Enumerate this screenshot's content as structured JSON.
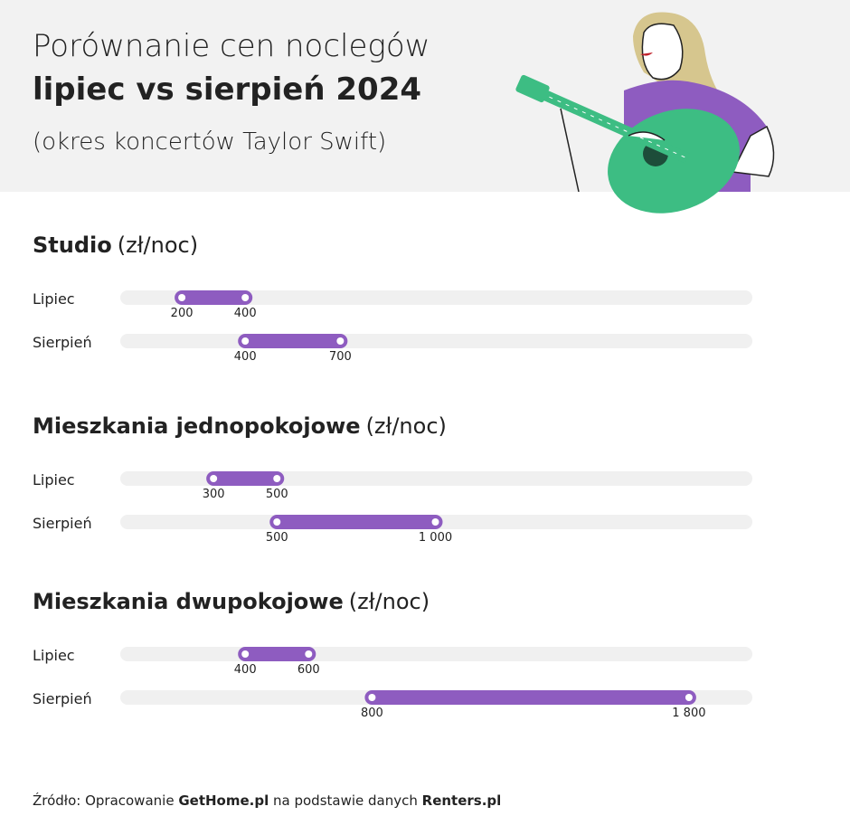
{
  "header": {
    "title_line1": "Porównanie cen noclegów",
    "title_line2": "lipiec vs sierpień 2024",
    "subtitle": "(okres koncertów Taylor Swift)"
  },
  "chart_data": [
    {
      "type": "range",
      "title": "Studio",
      "unit": "(zł/noc)",
      "categories": [
        "Lipiec",
        "Sierpień"
      ],
      "values": [
        [
          200,
          400
        ],
        [
          400,
          700
        ]
      ],
      "value_labels": [
        [
          "200",
          "400"
        ],
        [
          "400",
          "700"
        ]
      ],
      "xlim": [
        0,
        2000
      ],
      "color": "#8e5cc0"
    },
    {
      "type": "range",
      "title": "Mieszkania jednopokojowe",
      "unit": "(zł/noc)",
      "categories": [
        "Lipiec",
        "Sierpień"
      ],
      "values": [
        [
          300,
          500
        ],
        [
          500,
          1000
        ]
      ],
      "value_labels": [
        [
          "300",
          "500"
        ],
        [
          "500",
          "1 000"
        ]
      ],
      "xlim": [
        0,
        2000
      ],
      "color": "#8e5cc0"
    },
    {
      "type": "range",
      "title": "Mieszkania dwupokojowe",
      "unit": "(zł/noc)",
      "categories": [
        "Lipiec",
        "Sierpień"
      ],
      "values": [
        [
          400,
          600
        ],
        [
          800,
          1800
        ]
      ],
      "value_labels": [
        [
          "400",
          "600"
        ],
        [
          "800",
          "1 800"
        ]
      ],
      "xlim": [
        0,
        2000
      ],
      "color": "#8e5cc0"
    }
  ],
  "source": [
    "Źródło: Opracowanie ",
    "GetHome.pl",
    " na podstawie danych ",
    "Renters.pl"
  ]
}
